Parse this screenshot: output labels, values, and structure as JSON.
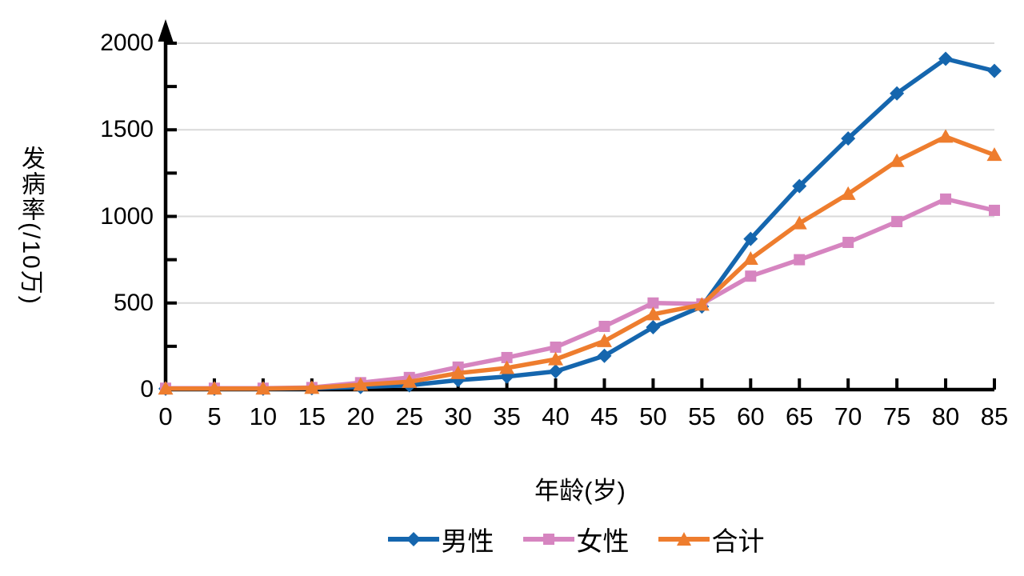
{
  "chart_data": {
    "type": "line",
    "title": "",
    "xlabel": "年龄(岁)",
    "ylabel": "发病率(/10万)",
    "ylabel_upright": "发病率",
    "ylabel_rotated": "(/10万)",
    "x": [
      0,
      5,
      10,
      15,
      20,
      25,
      30,
      35,
      40,
      45,
      50,
      55,
      60,
      65,
      70,
      75,
      80,
      85
    ],
    "x_tick_labels": [
      "0",
      "5",
      "10",
      "15",
      "20",
      "25",
      "30",
      "35",
      "40",
      "45",
      "50",
      "55",
      "60",
      "65",
      "70",
      "75",
      "80",
      "85"
    ],
    "y_ticks": [
      0,
      500,
      1000,
      1500,
      2000
    ],
    "y_minor_tick_step": 250,
    "ylim": [
      0,
      2000
    ],
    "xlim": [
      0,
      85
    ],
    "grid": "horizontal-major",
    "legend_position": "bottom",
    "series": [
      {
        "name": "男性",
        "marker": "diamond",
        "color": "#1566ae",
        "values": [
          5,
          5,
          5,
          8,
          15,
          25,
          55,
          75,
          105,
          195,
          360,
          480,
          870,
          1175,
          1450,
          1710,
          1910,
          1840
        ]
      },
      {
        "name": "女性",
        "marker": "square",
        "color": "#d685c0",
        "values": [
          8,
          8,
          8,
          12,
          40,
          70,
          130,
          185,
          245,
          365,
          500,
          495,
          655,
          750,
          850,
          970,
          1100,
          1035
        ]
      },
      {
        "name": "合计",
        "marker": "triangle",
        "color": "#ee7d2e",
        "values": [
          6,
          6,
          6,
          10,
          28,
          45,
          95,
          125,
          175,
          280,
          435,
          490,
          755,
          960,
          1130,
          1320,
          1460,
          1355
        ]
      }
    ],
    "colors": {
      "axis": "#000000",
      "gridline": "#d9d9d9",
      "background": "#ffffff",
      "male_line": "#1566ae",
      "female_line": "#d685c0",
      "total_line": "#ee7d2e"
    }
  }
}
